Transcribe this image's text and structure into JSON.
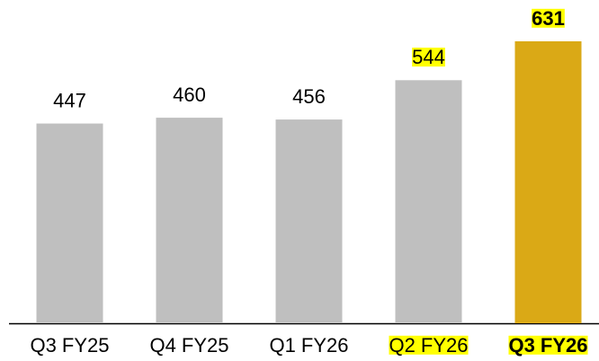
{
  "chart_data": {
    "type": "bar",
    "categories": [
      "Q3 FY25",
      "Q4 FY25",
      "Q1 FY26",
      "Q2 FY26",
      "Q3 FY26"
    ],
    "values": [
      447,
      460,
      456,
      544,
      631
    ],
    "colors": [
      "#bfbfbf",
      "#bfbfbf",
      "#bfbfbf",
      "#bfbfbf",
      "#daa916"
    ],
    "highlight_color": "#ffff00",
    "highlighted": [
      false,
      false,
      false,
      true,
      true
    ],
    "bold": [
      false,
      false,
      false,
      false,
      true
    ]
  }
}
